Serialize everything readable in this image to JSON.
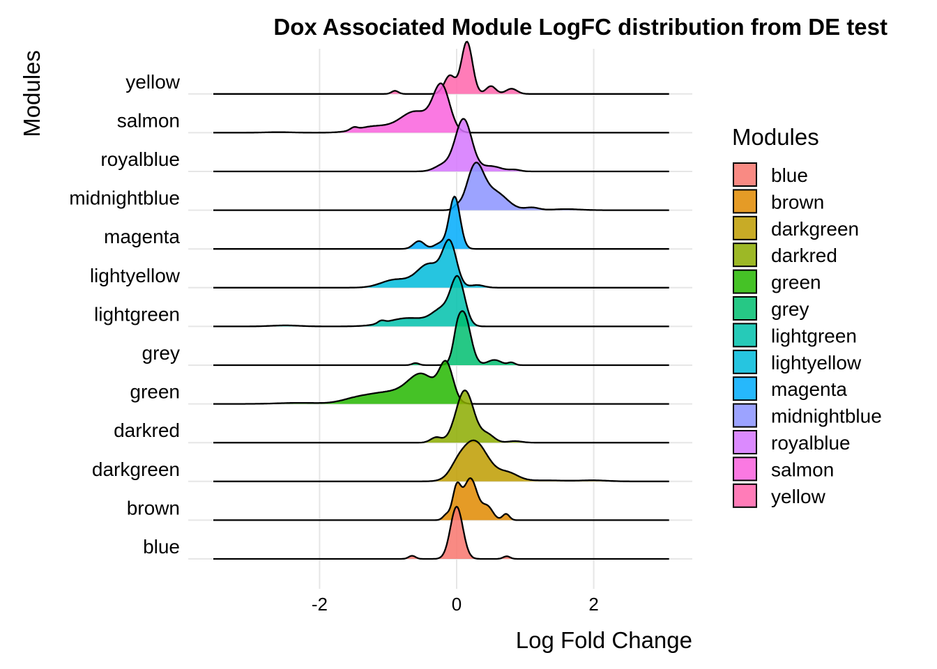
{
  "chart_data": {
    "type": "ridgeline",
    "title": "Dox Associated Module LogFC distribution from DE test",
    "xlabel": "Log Fold Change",
    "ylabel": "Modules",
    "xlim": [
      -3.6,
      3.4
    ],
    "xticks": [
      -2,
      0,
      2
    ],
    "xtick_labels": [
      "-2",
      "0",
      "2"
    ],
    "grid": true,
    "legend": {
      "title": "Modules",
      "position": "right"
    },
    "series": [
      {
        "name": "blue",
        "color": "#F8766D",
        "range": [
          -3.55,
          3.1
        ],
        "peaks": [
          [
            0.0,
            0.09,
            1.0
          ],
          [
            -0.65,
            0.05,
            0.06
          ],
          [
            0.73,
            0.05,
            0.05
          ]
        ]
      },
      {
        "name": "brown",
        "color": "#E18A00",
        "range": [
          -3.55,
          3.1
        ],
        "peaks": [
          [
            0.0,
            0.06,
            0.6
          ],
          [
            0.2,
            0.1,
            0.8
          ],
          [
            0.45,
            0.08,
            0.25
          ],
          [
            0.72,
            0.05,
            0.12
          ],
          [
            -0.15,
            0.05,
            0.1
          ]
        ]
      },
      {
        "name": "darkgreen",
        "color": "#BE9C00",
        "range": [
          -3.55,
          3.1
        ],
        "peaks": [
          [
            0.25,
            0.2,
            0.78
          ],
          [
            0.0,
            0.1,
            0.1
          ],
          [
            0.75,
            0.15,
            0.15
          ],
          [
            1.3,
            0.3,
            0.02
          ],
          [
            2.0,
            0.2,
            0.02
          ]
        ]
      },
      {
        "name": "darkred",
        "color": "#8CAB00",
        "range": [
          -3.55,
          3.1
        ],
        "peaks": [
          [
            0.12,
            0.13,
            1.0
          ],
          [
            -0.3,
            0.08,
            0.1
          ],
          [
            0.45,
            0.1,
            0.15
          ],
          [
            0.85,
            0.1,
            0.03
          ]
        ]
      },
      {
        "name": "green",
        "color": "#24B700",
        "range": [
          -3.55,
          3.1
        ],
        "peaks": [
          [
            -0.15,
            0.1,
            0.7
          ],
          [
            -0.5,
            0.2,
            0.5
          ],
          [
            -1.0,
            0.35,
            0.22
          ],
          [
            -1.5,
            0.2,
            0.05
          ],
          [
            -2.3,
            0.3,
            0.02
          ]
        ]
      },
      {
        "name": "grey",
        "color": "#00BE70",
        "range": [
          -3.55,
          3.1
        ],
        "peaks": [
          [
            0.1,
            0.1,
            1.0
          ],
          [
            0.0,
            0.05,
            0.2
          ],
          [
            0.55,
            0.1,
            0.1
          ],
          [
            0.8,
            0.05,
            0.05
          ],
          [
            -0.6,
            0.05,
            0.04
          ]
        ]
      },
      {
        "name": "lightgreen",
        "color": "#00C1AB",
        "range": [
          -3.55,
          3.1
        ],
        "peaks": [
          [
            0.02,
            0.1,
            0.85
          ],
          [
            -0.2,
            0.15,
            0.3
          ],
          [
            -0.7,
            0.3,
            0.16
          ],
          [
            -1.1,
            0.05,
            0.05
          ],
          [
            -2.5,
            0.2,
            0.02
          ]
        ]
      },
      {
        "name": "lightyellow",
        "color": "#00BBDA",
        "range": [
          -3.55,
          3.1
        ],
        "peaks": [
          [
            -0.1,
            0.1,
            0.8
          ],
          [
            -0.4,
            0.18,
            0.45
          ],
          [
            -0.9,
            0.2,
            0.15
          ],
          [
            0.3,
            0.1,
            0.05
          ]
        ]
      },
      {
        "name": "magenta",
        "color": "#00ACFC",
        "range": [
          -3.55,
          3.1
        ],
        "peaks": [
          [
            -0.03,
            0.08,
            1.0
          ],
          [
            -0.55,
            0.08,
            0.15
          ],
          [
            -0.25,
            0.08,
            0.1
          ]
        ]
      },
      {
        "name": "midnightblue",
        "color": "#8B93FF",
        "range": [
          -3.55,
          3.1
        ],
        "peaks": [
          [
            0.27,
            0.12,
            0.8
          ],
          [
            0.55,
            0.18,
            0.35
          ],
          [
            0.0,
            0.05,
            0.05
          ],
          [
            1.1,
            0.1,
            0.05
          ],
          [
            1.6,
            0.2,
            0.02
          ]
        ]
      },
      {
        "name": "royalblue",
        "color": "#D575FE",
        "range": [
          -3.55,
          3.1
        ],
        "peaks": [
          [
            0.1,
            0.12,
            1.0
          ],
          [
            -0.2,
            0.12,
            0.12
          ],
          [
            0.5,
            0.15,
            0.1
          ],
          [
            0.85,
            0.08,
            0.03
          ]
        ]
      },
      {
        "name": "salmon",
        "color": "#F962DD",
        "range": [
          -3.55,
          3.1
        ],
        "peaks": [
          [
            -0.22,
            0.12,
            0.85
          ],
          [
            -0.6,
            0.22,
            0.4
          ],
          [
            -1.2,
            0.25,
            0.12
          ],
          [
            -1.5,
            0.05,
            0.05
          ],
          [
            -2.6,
            0.2,
            0.01
          ]
        ]
      },
      {
        "name": "yellow",
        "color": "#FF65AC",
        "range": [
          -3.55,
          3.1
        ],
        "peaks": [
          [
            0.15,
            0.08,
            1.0
          ],
          [
            -0.1,
            0.08,
            0.35
          ],
          [
            0.5,
            0.07,
            0.15
          ],
          [
            0.8,
            0.08,
            0.1
          ],
          [
            -0.9,
            0.05,
            0.06
          ]
        ]
      }
    ]
  }
}
